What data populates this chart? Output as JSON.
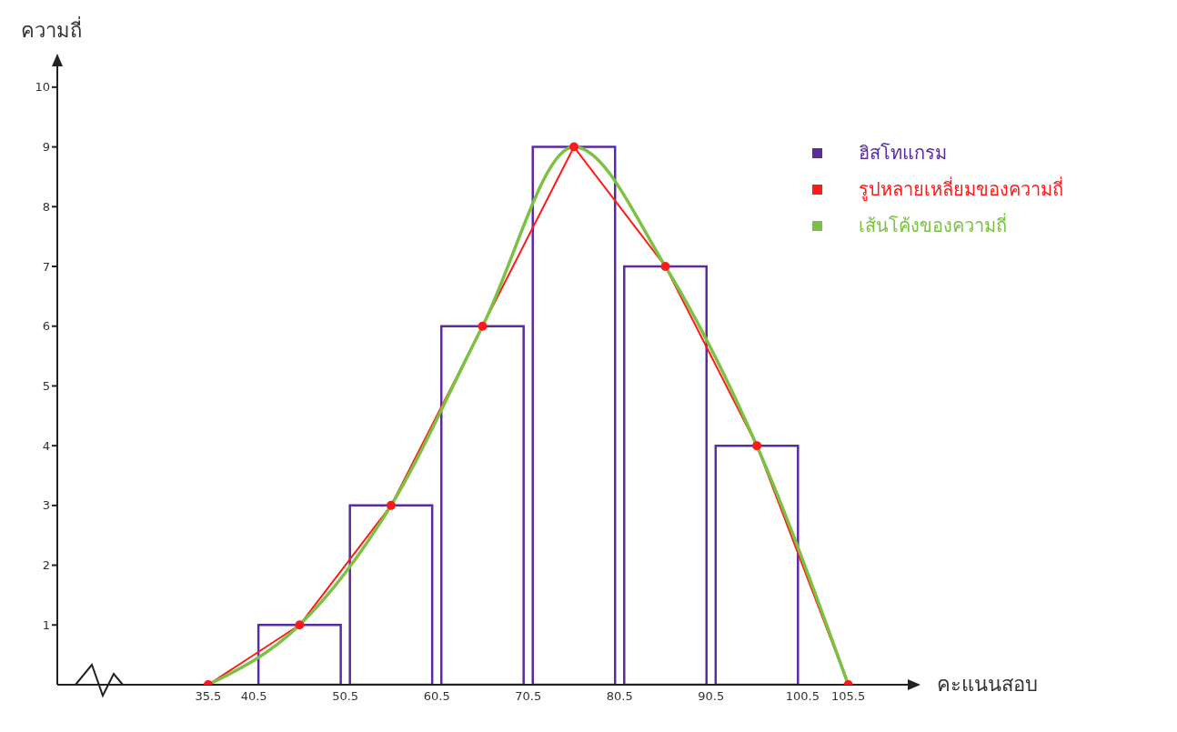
{
  "chart_data": {
    "type": "histogram",
    "xlabel": "คะแนนสอบ",
    "ylabel": "ความถี่",
    "bins": [
      40.5,
      50.5,
      60.5,
      70.5,
      80.5,
      90.5,
      100.5
    ],
    "series": [
      {
        "name": "ฮิสโทแกรม",
        "color": "#5b2ca0",
        "values": [
          1,
          3,
          6,
          9,
          7,
          4
        ]
      },
      {
        "name": "รูปหลายเหลี่ยมของความถี่",
        "type": "line",
        "color": "#ff1a1a",
        "marker": "circle",
        "x": [
          35.5,
          45.5,
          55.5,
          65.5,
          75.5,
          85.5,
          95.5,
          105.5
        ],
        "values": [
          0,
          1,
          3,
          6,
          9,
          7,
          4,
          0
        ]
      },
      {
        "name": "เส้นโค้งของความถี่",
        "type": "line",
        "color": "#7cc242",
        "marker": "none",
        "x": [
          35.5,
          45.5,
          55.5,
          65.5,
          75.5,
          85.5,
          95.5,
          105.5
        ],
        "values": [
          0,
          1,
          3,
          6,
          9,
          7,
          4,
          0
        ]
      }
    ],
    "xlim": [
      19,
      113
    ],
    "xticks": [
      35.5,
      40.5,
      50.5,
      60.5,
      70.5,
      80.5,
      90.5,
      100.5,
      105.5
    ],
    "ylim": [
      0,
      10.5
    ],
    "yticks": [
      1,
      2,
      3,
      4,
      5,
      6,
      7,
      8,
      9,
      10
    ],
    "grid": false,
    "legend": "top right"
  }
}
